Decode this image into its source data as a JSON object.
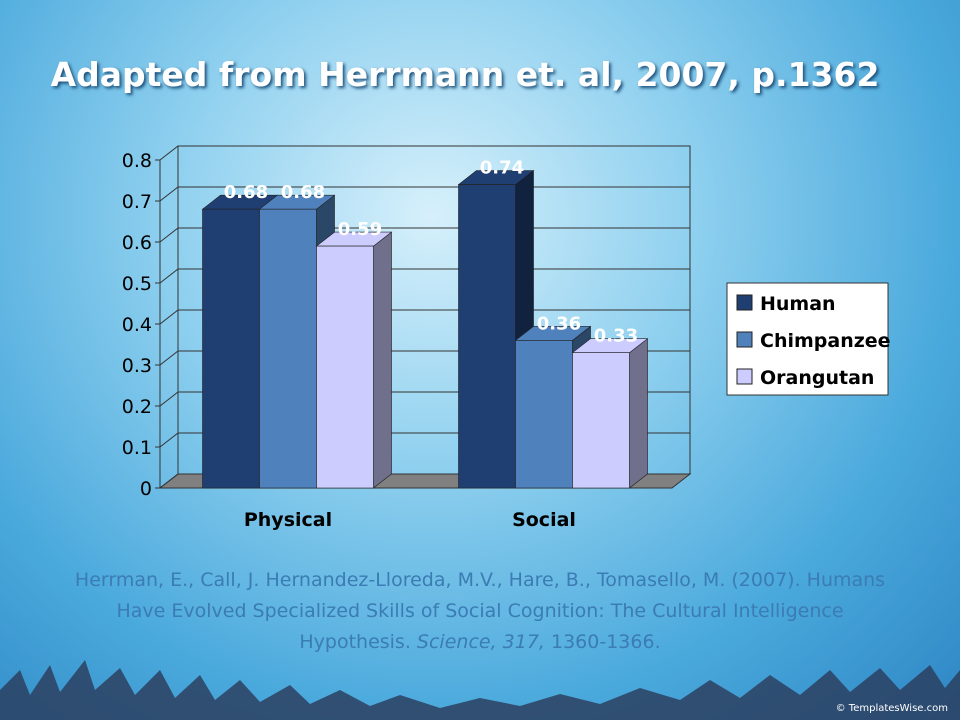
{
  "title": "Adapted from Herrmann et. al, 2007, p.1362",
  "chart_data": {
    "type": "bar3d",
    "categories": [
      "Physical",
      "Social"
    ],
    "series": [
      {
        "name": "Human",
        "color": "#1f3f73",
        "values": [
          0.68,
          0.74
        ]
      },
      {
        "name": "Chimpanzee",
        "color": "#4f81bd",
        "values": [
          0.68,
          0.36
        ]
      },
      {
        "name": "Orangutan",
        "color": "#ccccff",
        "values": [
          0.59,
          0.33
        ]
      }
    ],
    "ylim": [
      0,
      0.8
    ],
    "yticks": [
      0,
      0.1,
      0.2,
      0.3,
      0.4,
      0.5,
      0.6,
      0.7,
      0.8
    ],
    "grid": true,
    "legend": "right"
  },
  "citation": [
    "Herrman, E., Call, J. Hernandez-Lloreda, M.V., Hare, B., Tomasello, M. (2007). Humans Have Evolved Specialized Skills of Social Cognition: The Cultural Intelligence Hypothesis. ",
    "Science, 317,",
    " 1360-1366."
  ],
  "watermark": "© TemplatesWise.com"
}
